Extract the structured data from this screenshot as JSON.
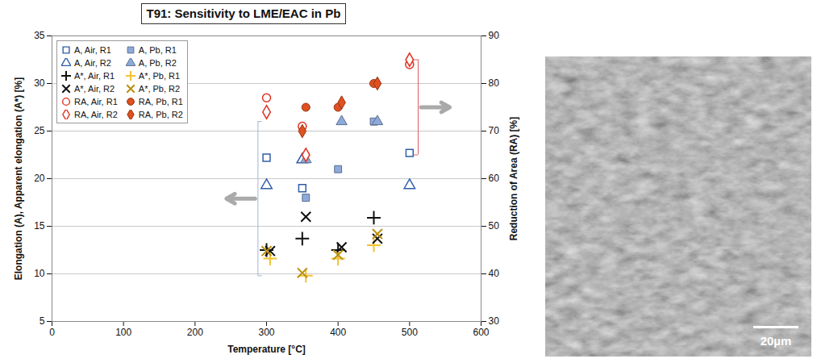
{
  "chart_data": {
    "type": "scatter",
    "title": "T91: Sensitivity to LME/EAC in Pb",
    "x_label": "Temperature [°C]",
    "y_label": "Elongation (A), Apparent elongation (A*) [%]",
    "y2_label": "Reduction of Area (RA) [%]",
    "xlim": [
      0,
      600
    ],
    "xticks": [
      0,
      100,
      200,
      300,
      400,
      500,
      600
    ],
    "ylim": [
      5,
      35
    ],
    "yticks": [
      5,
      10,
      15,
      20,
      25,
      30,
      35
    ],
    "y2lim": [
      30,
      90
    ],
    "y2ticks": [
      30,
      40,
      50,
      60,
      70,
      80,
      90
    ],
    "grid": true,
    "legend": "top-left",
    "series": [
      {
        "name": "A, Air, R1",
        "color": "#2f5fa8",
        "marker": "square_open",
        "x": [
          300,
          350,
          500
        ],
        "values": [
          22.2,
          19.0,
          22.7
        ]
      },
      {
        "name": "A, Pb, R1",
        "color": "#8eaadb",
        "marker": "square_filled",
        "x": [
          355,
          400,
          450
        ],
        "values": [
          18.0,
          21.0,
          26.0
        ]
      },
      {
        "name": "A, Air, R2",
        "color": "#2f5fa8",
        "marker": "triangle_open",
        "x": [
          300,
          350,
          500
        ],
        "values": [
          19.3,
          22.0,
          19.3
        ]
      },
      {
        "name": "A, Pb, R2",
        "color": "#8eaadb",
        "marker": "triangle_filled",
        "x": [
          355,
          405,
          455
        ],
        "values": [
          22.0,
          26.0,
          26.0
        ]
      },
      {
        "name": "A*, Air, R1",
        "color": "#111111",
        "marker": "plus",
        "x": [
          300,
          350,
          400,
          450
        ],
        "values": [
          12.5,
          13.7,
          12.5,
          15.9
        ]
      },
      {
        "name": "A*, Pb, R1",
        "color": "#f2c230",
        "marker": "plus",
        "x": [
          305,
          355,
          400,
          450
        ],
        "values": [
          11.6,
          9.8,
          11.6,
          13.0
        ]
      },
      {
        "name": "A*, Air, R2",
        "color": "#111111",
        "marker": "times",
        "x": [
          305,
          355,
          405,
          455
        ],
        "values": [
          12.4,
          16.0,
          12.8,
          13.7
        ]
      },
      {
        "name": "A*, Pb, R2",
        "color": "#b8900f",
        "marker": "times",
        "x": [
          300,
          350,
          400,
          455
        ],
        "values": [
          12.4,
          10.1,
          12.0,
          14.2
        ]
      },
      {
        "name": "RA, Air, R1",
        "color": "#e03020",
        "marker": "circle_open",
        "axis": "y2",
        "x": [
          300,
          350,
          500
        ],
        "values": [
          77,
          71,
          84
        ]
      },
      {
        "name": "RA, Pb, R1",
        "color": "#e05020",
        "marker": "circle_filled",
        "axis": "y2",
        "x": [
          355,
          400,
          450
        ],
        "values": [
          75,
          75,
          80
        ]
      },
      {
        "name": "RA, Air, R2",
        "color": "#e03020",
        "marker": "diamond_open",
        "axis": "y2",
        "x": [
          300,
          355,
          500
        ],
        "values": [
          74,
          65,
          85
        ]
      },
      {
        "name": "RA, Pb, R2",
        "color": "#e05020",
        "marker": "diamond_filled",
        "axis": "y2",
        "x": [
          350,
          405,
          455
        ],
        "values": [
          70,
          76,
          80
        ]
      }
    ]
  },
  "micrograph": {
    "scale_bar_label": "20µm"
  }
}
